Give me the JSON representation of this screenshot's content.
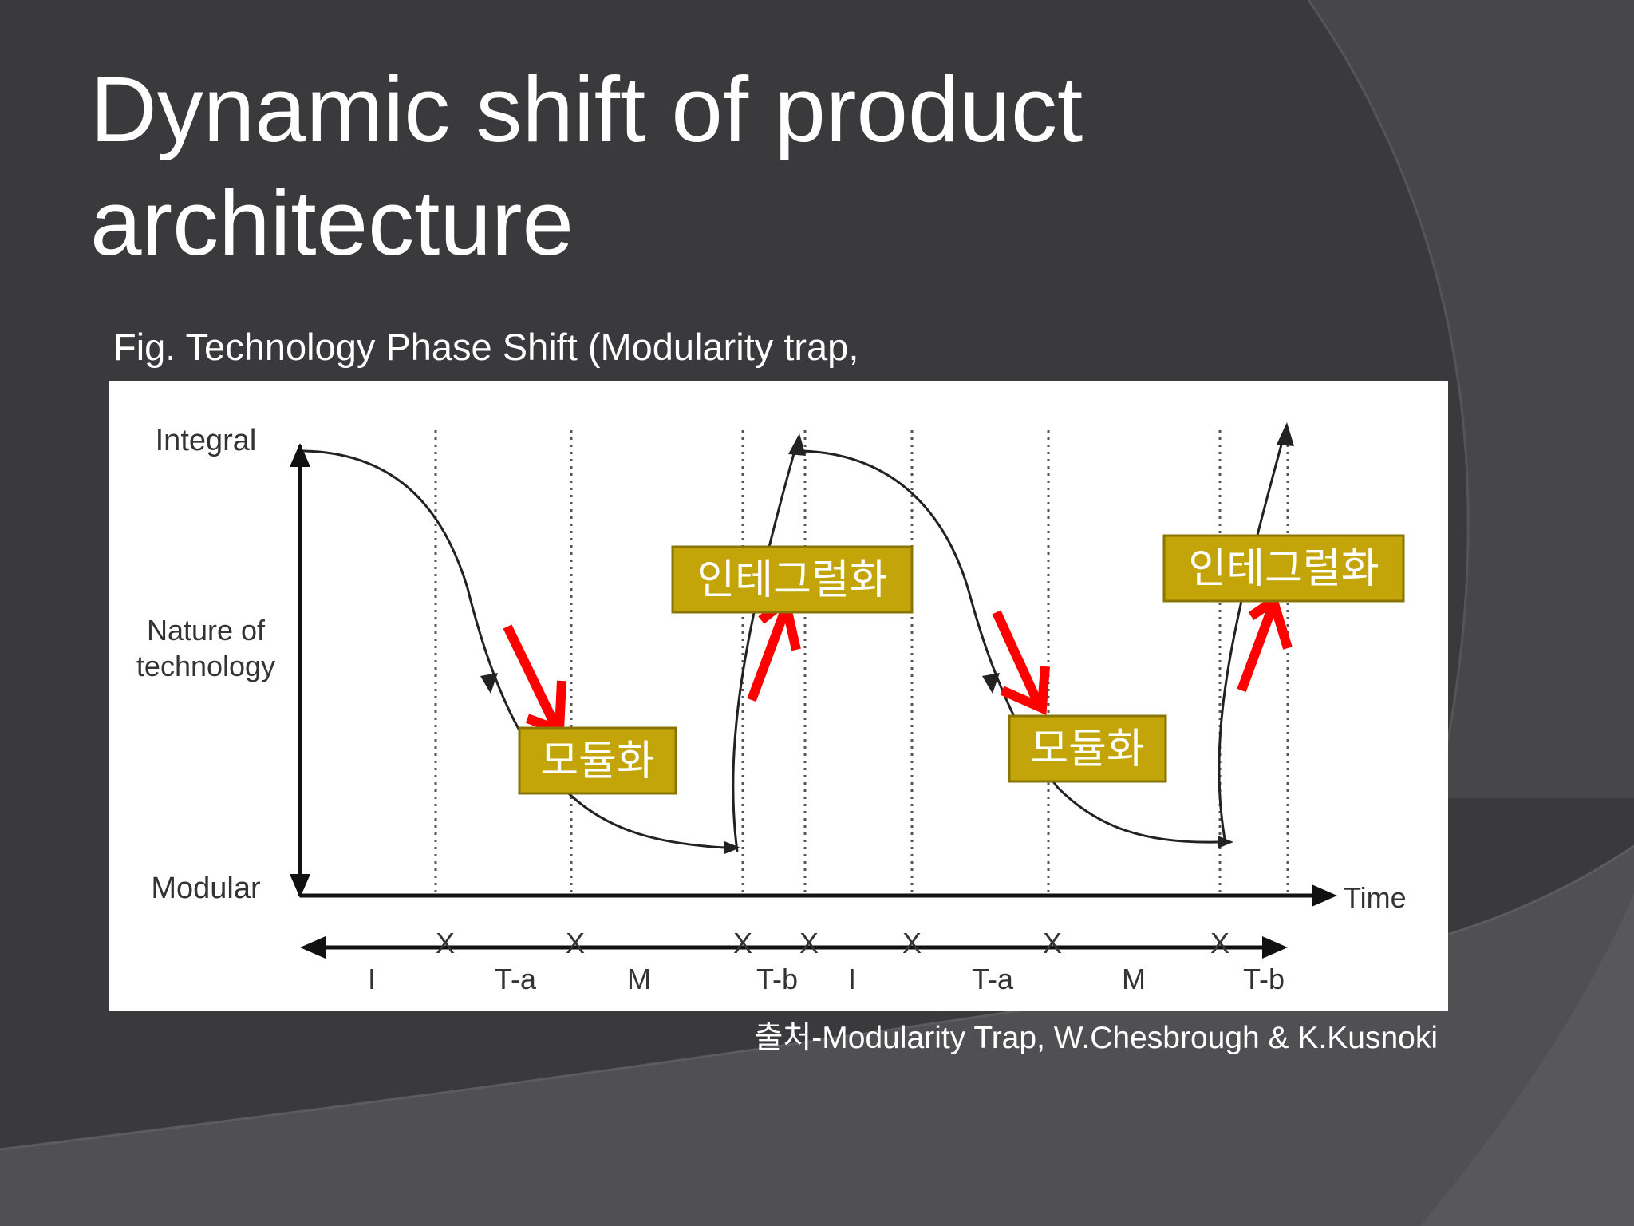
{
  "slide": {
    "title": "Dynamic shift of product architecture",
    "caption": "Fig. Technology Phase Shift (Modularity trap,",
    "source": "출처-Modularity Trap, W.Chesbrough & K.Kusnoki"
  },
  "diagram": {
    "y_axis": {
      "top_label": "Integral",
      "middle_label_line1": "Nature of",
      "middle_label_line2": "technology",
      "bottom_label": "Modular"
    },
    "x_axis_label": "Time",
    "phase_labels": [
      "I",
      "T-a",
      "M",
      "T-b",
      "I",
      "T-a",
      "M",
      "T-b"
    ],
    "boundary_marker": "X",
    "tags": {
      "modularize_1": "모듈화",
      "integralize_1": "인테그럴화",
      "modularize_2": "모듈화",
      "integralize_2": "인테그럴화"
    },
    "colors": {
      "tag_fill": "#c3a50a",
      "arrow_red": "#ff0000",
      "background": "#3a3a3c"
    }
  }
}
